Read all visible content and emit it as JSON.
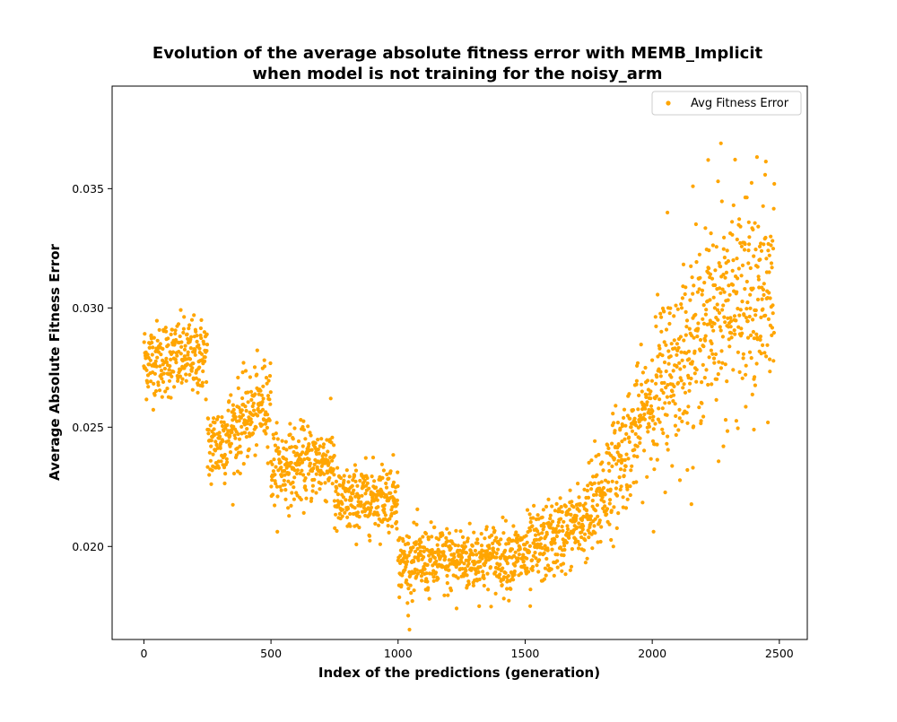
{
  "chart_data": {
    "type": "scatter",
    "title_lines": [
      "Evolution of the average absolute fitness error with MEMB_Implicit",
      "when model is not training for the noisy_arm"
    ],
    "xlabel": "Index of the predictions (generation)",
    "ylabel": "Average Absolute Fitness Error",
    "xlim": [
      -125,
      2610
    ],
    "ylim": [
      0.0161,
      0.0393
    ],
    "xticks": [
      0,
      500,
      1000,
      1500,
      2000,
      2500
    ],
    "yticks": [
      0.02,
      0.025,
      0.03,
      0.035
    ],
    "xtick_labels": [
      "0",
      "500",
      "1000",
      "1500",
      "2000",
      "2500"
    ],
    "ytick_labels": [
      "0.020",
      "0.025",
      "0.030",
      "0.035"
    ],
    "grid": false,
    "legend": {
      "position": "top-right",
      "entries": [
        "Avg Fitness Error"
      ]
    },
    "series": [
      {
        "name": "Avg Fitness Error",
        "color": "#ffa500",
        "n_points": 2480,
        "segments": [
          {
            "x_range": [
              0,
              250
            ],
            "y_mean_start": 0.0278,
            "y_mean_end": 0.028,
            "y_spread": 0.0008
          },
          {
            "x_range": [
              250,
              500
            ],
            "y_mean_start": 0.024,
            "y_mean_end": 0.0262,
            "y_spread": 0.0009
          },
          {
            "x_range": [
              500,
              750
            ],
            "y_mean_start": 0.0233,
            "y_mean_end": 0.0236,
            "y_spread": 0.0008
          },
          {
            "x_range": [
              750,
              1000
            ],
            "y_mean_start": 0.0218,
            "y_mean_end": 0.0222,
            "y_spread": 0.0007
          },
          {
            "x_range": [
              1000,
              1500
            ],
            "y_mean_start": 0.0193,
            "y_mean_end": 0.0196,
            "y_spread": 0.0007
          },
          {
            "x_range": [
              1500,
              1750
            ],
            "y_mean_start": 0.0196,
            "y_mean_end": 0.0212,
            "y_spread": 0.0008
          },
          {
            "x_range": [
              1750,
              2000
            ],
            "y_mean_start": 0.0212,
            "y_mean_end": 0.0262,
            "y_spread": 0.0012
          },
          {
            "x_range": [
              2000,
              2250
            ],
            "y_mean_start": 0.0262,
            "y_mean_end": 0.03,
            "y_spread": 0.0018
          },
          {
            "x_range": [
              2250,
              2480
            ],
            "y_mean_start": 0.03,
            "y_mean_end": 0.0305,
            "y_spread": 0.0022
          }
        ],
        "notable_points": [
          {
            "x": 2270,
            "y": 0.0369
          },
          {
            "x": 2220,
            "y": 0.0362
          },
          {
            "x": 2160,
            "y": 0.0351
          },
          {
            "x": 2060,
            "y": 0.034
          },
          {
            "x": 2480,
            "y": 0.0352
          },
          {
            "x": 1040,
            "y": 0.0171
          },
          {
            "x": 1230,
            "y": 0.0174
          },
          {
            "x": 1520,
            "y": 0.0175
          },
          {
            "x": 2280,
            "y": 0.0242
          },
          {
            "x": 2400,
            "y": 0.0249
          },
          {
            "x": 2160,
            "y": 0.0233
          }
        ]
      }
    ]
  }
}
